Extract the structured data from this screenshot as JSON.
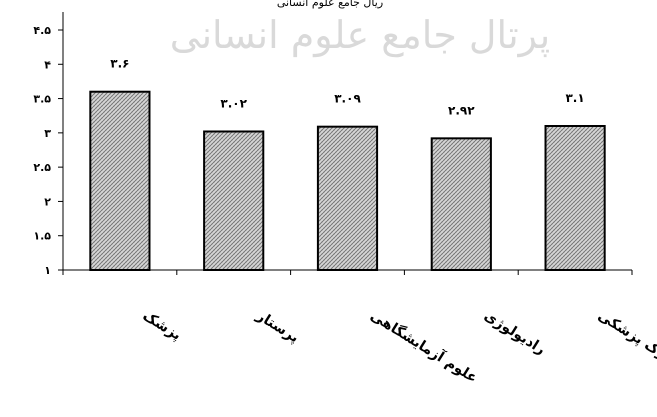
{
  "header_note": "ریال جامع علوم انسانی",
  "watermark": "پرتال جامع علوم انسانی",
  "chart_data": {
    "type": "bar",
    "categories": [
      "پزشک",
      "پرستار",
      "علوم آزمایشگاهی",
      "رادیولوژی",
      "مدارک پزشکی"
    ],
    "values": [
      3.6,
      3.02,
      3.09,
      2.92,
      3.1
    ],
    "data_labels": [
      "۳.۶",
      "۳.۰۲",
      "۳.۰۹",
      "۲.۹۲",
      "۳.۱"
    ],
    "y_ticks": [
      1,
      1.5,
      2,
      2.5,
      3,
      3.5,
      4,
      4.5
    ],
    "y_tick_labels": [
      "۱",
      "۱.۵",
      "۲",
      "۲.۵",
      "۳",
      "۳.۵",
      "۴",
      "۴.۵"
    ],
    "ylim": [
      1,
      4.5
    ],
    "grid": false,
    "bar_fill": "#c8c8c8",
    "bar_stroke": "#000000"
  }
}
